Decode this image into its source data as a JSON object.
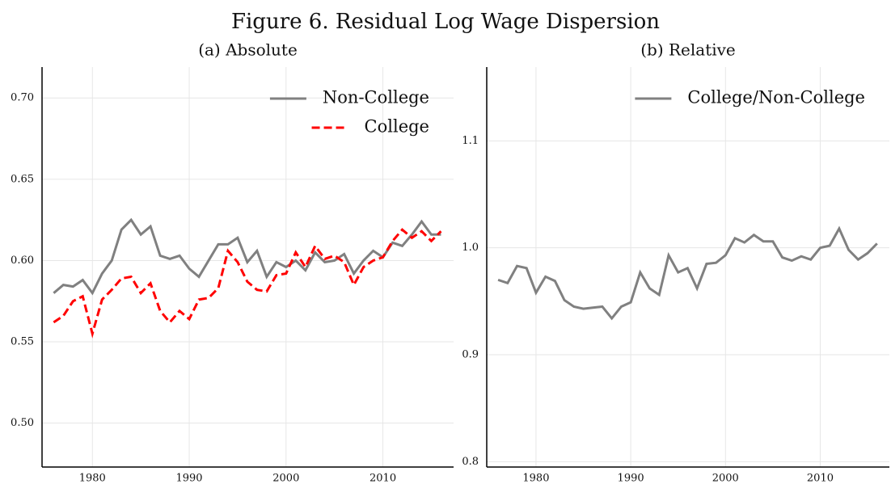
{
  "title": "Figure 6. Residual Log Wage Dispersion",
  "chart_data": [
    {
      "type": "line",
      "title": "(a) Absolute",
      "x": [
        1976,
        1977,
        1978,
        1979,
        1980,
        1981,
        1982,
        1983,
        1984,
        1985,
        1986,
        1987,
        1988,
        1989,
        1990,
        1991,
        1992,
        1993,
        1994,
        1995,
        1996,
        1997,
        1998,
        1999,
        2000,
        2001,
        2002,
        2003,
        2004,
        2005,
        2006,
        2007,
        2008,
        2009,
        2010,
        2011,
        2012,
        2013,
        2014,
        2015,
        2016
      ],
      "series": [
        {
          "name": "Non-College",
          "color": "#808080",
          "linestyle": "solid",
          "values": [
            0.58,
            0.585,
            0.584,
            0.588,
            0.58,
            0.592,
            0.6,
            0.619,
            0.625,
            0.616,
            0.621,
            0.603,
            0.601,
            0.603,
            0.595,
            0.59,
            0.6,
            0.61,
            0.61,
            0.614,
            0.599,
            0.606,
            0.59,
            0.599,
            0.596,
            0.6,
            0.594,
            0.605,
            0.599,
            0.6,
            0.604,
            0.592,
            0.6,
            0.606,
            0.602,
            0.611,
            0.609,
            0.616,
            0.624,
            0.616,
            0.616
          ]
        },
        {
          "name": "College",
          "color": "#ff0000",
          "linestyle": "dashed",
          "values": [
            0.562,
            0.566,
            0.575,
            0.578,
            0.555,
            0.576,
            0.582,
            0.589,
            0.59,
            0.58,
            0.586,
            0.569,
            0.562,
            0.569,
            0.564,
            0.576,
            0.577,
            0.583,
            0.606,
            0.599,
            0.587,
            0.582,
            0.581,
            0.591,
            0.592,
            0.605,
            0.596,
            0.609,
            0.601,
            0.603,
            0.599,
            0.585,
            0.596,
            0.6,
            0.602,
            0.612,
            0.619,
            0.614,
            0.618,
            0.612,
            0.618
          ]
        }
      ],
      "xlim": [
        1974.8,
        2017.3
      ],
      "xticks": [
        1980,
        1990,
        2000,
        2010
      ],
      "ylim": [
        0.473,
        0.719
      ],
      "yticks": [
        {
          "value": 0.5,
          "label": "0.50"
        },
        0.55,
        {
          "value": 0.6,
          "label": "0.60"
        },
        0.65,
        {
          "value": 0.7,
          "label": "0.70"
        }
      ],
      "grid": true,
      "legend": "upper right"
    },
    {
      "type": "line",
      "title": "(b) Relative",
      "x": [
        1976,
        1977,
        1978,
        1979,
        1980,
        1981,
        1982,
        1983,
        1984,
        1985,
        1986,
        1987,
        1988,
        1989,
        1990,
        1991,
        1992,
        1993,
        1994,
        1995,
        1996,
        1997,
        1998,
        1999,
        2000,
        2001,
        2002,
        2003,
        2004,
        2005,
        2006,
        2007,
        2008,
        2009,
        2010,
        2011,
        2012,
        2013,
        2014,
        2015,
        2016
      ],
      "series": [
        {
          "name": "College/Non-College",
          "color": "#808080",
          "linestyle": "solid",
          "values": [
            0.97,
            0.967,
            0.983,
            0.981,
            0.958,
            0.973,
            0.969,
            0.951,
            0.945,
            0.943,
            0.944,
            0.945,
            0.934,
            0.945,
            0.949,
            0.977,
            0.962,
            0.956,
            0.993,
            0.977,
            0.981,
            0.962,
            0.985,
            0.986,
            0.993,
            1.009,
            1.005,
            1.012,
            1.006,
            1.006,
            0.991,
            0.988,
            0.992,
            0.989,
            1.0,
            1.002,
            1.018,
            0.998,
            0.989,
            0.995,
            1.004
          ]
        }
      ],
      "xlim": [
        1974.8,
        2017.3
      ],
      "xticks": [
        1980,
        1990,
        2000,
        2010
      ],
      "ylim": [
        0.795,
        1.169
      ],
      "yticks": [
        0.8,
        0.9,
        {
          "value": 1.0,
          "label": "1.0"
        },
        1.1
      ],
      "grid": true,
      "legend": "upper right"
    }
  ]
}
